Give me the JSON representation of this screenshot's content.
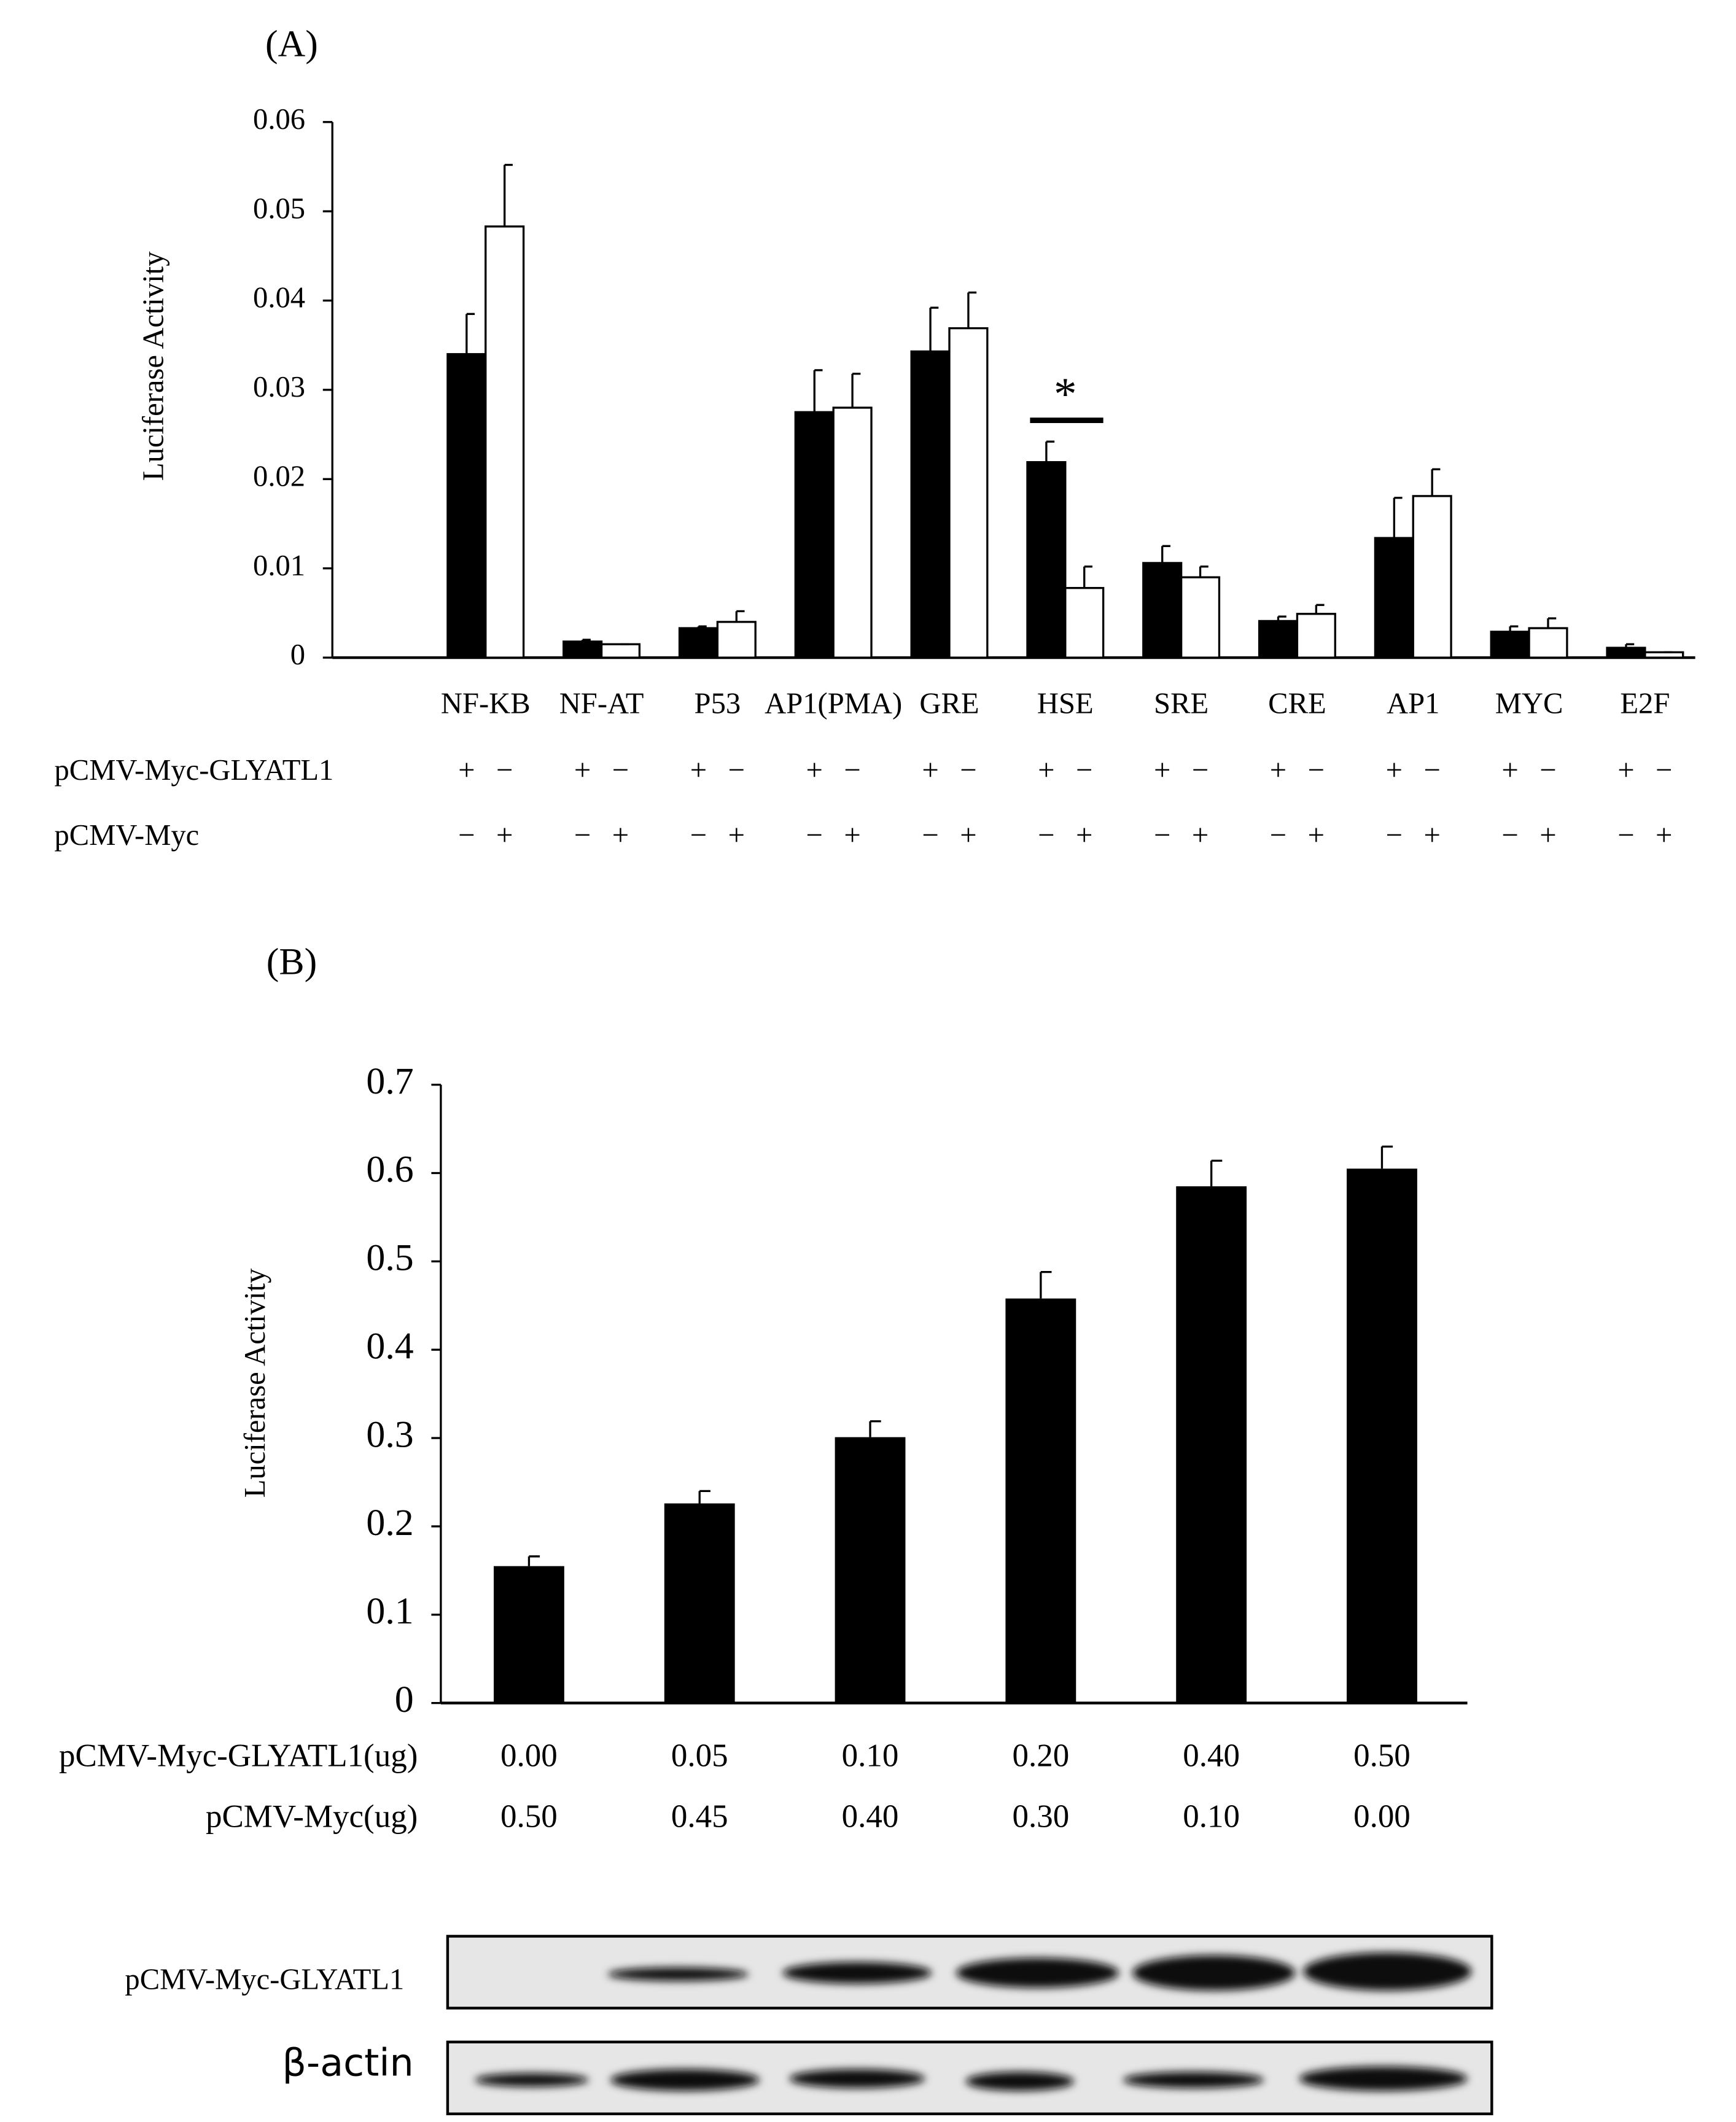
{
  "chart_data": [
    {
      "type": "bar",
      "title": "(A)",
      "y_label": "Luciferase Activity",
      "categories": [
        "NF-KB",
        "NF-AT",
        "P53",
        "AP1(PMA)",
        "GRE",
        "HSE",
        "SRE",
        "CRE",
        "AP1",
        "MYC",
        "E2F"
      ],
      "series": [
        {
          "color": "#000000",
          "values": [
            0.034,
            0.0018,
            0.0033,
            0.0275,
            0.0343,
            0.0219,
            0.0106,
            0.0041,
            0.0134,
            0.0029,
            0.0011
          ],
          "errors": [
            0.0045,
            0.0002,
            0.0002,
            0.0047,
            0.0049,
            0.0023,
            0.0019,
            0.0005,
            0.0045,
            0.0006,
            0.0004
          ]
        },
        {
          "color": "#ffffff",
          "values": [
            0.0483,
            0.0015,
            0.004,
            0.028,
            0.0369,
            0.0078,
            0.009,
            0.0049,
            0.0181,
            0.0033,
            0.0006
          ],
          "errors": [
            0.0069,
            0,
            0.0012,
            0.0038,
            0.004,
            0.0024,
            0.0012,
            0.001,
            0.003,
            0.0011,
            0
          ]
        }
      ],
      "ylim": [
        0,
        0.06
      ],
      "yticks": [
        0,
        0.01,
        0.02,
        0.03,
        0.04,
        0.05,
        0.06
      ],
      "annotation": "*",
      "rows": [
        {
          "label": "pCMV-Myc-GLYATL1",
          "signs": [
            [
              "+",
              "−"
            ],
            [
              "+",
              "−"
            ],
            [
              "+",
              "−"
            ],
            [
              "+",
              "−"
            ],
            [
              "+",
              "−"
            ],
            [
              "+",
              "−"
            ],
            [
              "+",
              "−"
            ],
            [
              "+",
              "−"
            ],
            [
              "+",
              "−"
            ],
            [
              "+",
              "−"
            ],
            [
              "+",
              "−"
            ]
          ]
        },
        {
          "label": "pCMV-Myc",
          "signs": [
            [
              "−",
              "+"
            ],
            [
              "−",
              "+"
            ],
            [
              "−",
              "+"
            ],
            [
              "−",
              "+"
            ],
            [
              "−",
              "+"
            ],
            [
              "−",
              "+"
            ],
            [
              "−",
              "+"
            ],
            [
              "−",
              "+"
            ],
            [
              "−",
              "+"
            ],
            [
              "−",
              "+"
            ],
            [
              "−",
              "+"
            ]
          ]
        }
      ]
    },
    {
      "type": "bar",
      "title": "(B)",
      "y_label": "Luciferase Activity",
      "color": "#000000",
      "values": [
        0.155,
        0.226,
        0.301,
        0.458,
        0.585,
        0.605
      ],
      "errors": [
        0.011,
        0.014,
        0.018,
        0.03,
        0.029,
        0.025
      ],
      "ylim": [
        0,
        0.7
      ],
      "yticks": [
        0,
        0.1,
        0.2,
        0.3,
        0.4,
        0.5,
        0.6,
        0.7
      ],
      "rows": [
        {
          "label": "pCMV-Myc-GLYATL1(ug)",
          "values": [
            "0.00",
            "0.05",
            "0.10",
            "0.20",
            "0.40",
            "0.50"
          ]
        },
        {
          "label": "pCMV-Myc(ug)",
          "values": [
            "0.50",
            "0.45",
            "0.40",
            "0.30",
            "0.10",
            "0.00"
          ]
        }
      ],
      "blot_labels": [
        "pCMV-Myc-GLYATL1",
        "β-actin"
      ]
    }
  ]
}
